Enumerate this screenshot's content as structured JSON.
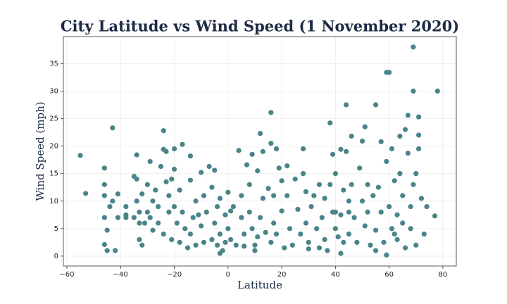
{
  "chart_data": {
    "type": "scatter",
    "title": "City Latitude vs Wind Speed (1 November 2020)",
    "x_label": "Latitude",
    "y_label": "Wind Speed (mph)",
    "color": "#4a8489",
    "grid": true,
    "xlim": [
      -61.3,
      85
    ],
    "ylim": [
      -1.8,
      39.9
    ],
    "xticks": [
      {
        "value": -60,
        "label": "−60"
      },
      {
        "value": -40,
        "label": "−40"
      },
      {
        "value": -20,
        "label": "−20"
      },
      0,
      20,
      40,
      60,
      80
    ],
    "yticks": [
      0,
      5,
      10,
      15,
      20,
      25,
      30,
      35
    ],
    "x": [
      -55,
      -53,
      -46,
      -46,
      -46,
      -46,
      -45,
      -46,
      -45,
      -43,
      -43,
      -42,
      -44,
      -41,
      -41,
      -38,
      -38,
      -38,
      -35,
      -34,
      -34,
      -34,
      -33,
      -33,
      -32,
      -32,
      -33,
      -31,
      -30,
      -29,
      -29,
      -28,
      -28,
      -27,
      -26,
      -26,
      -25,
      -24,
      -24,
      -23,
      -23,
      -24,
      -22,
      -22,
      -21,
      -21,
      -20,
      -20,
      -20,
      -19,
      -18,
      -18,
      -17,
      -17,
      -16,
      -15,
      -14,
      -14,
      -14,
      -13,
      -12,
      -12,
      -11,
      -10,
      -10,
      -9,
      -9,
      -8,
      -7,
      -6,
      -6,
      -5,
      -5,
      -4,
      -4,
      -3,
      -3,
      -2,
      -1,
      -1,
      0,
      0,
      1,
      1,
      2,
      3,
      4,
      5,
      5,
      6,
      6,
      7,
      8,
      8,
      9,
      9,
      10,
      11,
      11,
      12,
      12,
      13,
      13,
      14,
      15,
      16,
      16,
      16,
      17,
      17,
      18,
      18,
      19,
      20,
      20,
      21,
      22,
      22,
      23,
      24,
      25,
      26,
      27,
      28,
      28,
      29,
      29,
      30,
      31,
      32,
      33,
      34,
      34,
      35,
      36,
      36,
      37,
      38,
      38,
      39,
      39,
      40,
      40,
      41,
      42,
      42,
      43,
      43,
      44,
      44,
      45,
      45,
      46,
      46,
      47,
      48,
      49,
      50,
      50,
      51,
      51,
      52,
      52,
      53,
      54,
      55,
      55,
      56,
      57,
      57,
      58,
      59,
      60,
      59,
      60,
      61,
      61,
      62,
      63,
      63,
      64,
      64,
      65,
      66,
      66,
      67,
      67,
      68,
      68,
      69,
      69,
      69,
      70,
      70,
      71,
      71,
      71,
      72,
      73,
      74,
      77,
      78,
      65,
      62,
      55,
      59,
      42,
      30,
      10,
      -3,
      -35,
      -30,
      45,
      40
    ],
    "values": [
      18.3,
      11.4,
      16,
      13,
      11,
      7,
      4.7,
      2.1,
      1,
      23.3,
      10,
      1,
      9,
      11.3,
      7,
      7.5,
      9,
      7,
      14.5,
      14,
      18.4,
      10,
      8,
      6,
      11.3,
      2,
      3,
      6,
      13,
      17.2,
      7,
      4.7,
      10,
      12,
      9,
      6,
      16.3,
      19.4,
      22.8,
      19,
      13.5,
      4,
      11,
      8,
      14,
      3,
      19.5,
      15.8,
      9,
      6,
      2.5,
      12,
      20.3,
      8,
      5,
      1.5,
      18.2,
      13.8,
      4,
      7,
      10,
      2,
      7.5,
      15.2,
      5.5,
      2.5,
      11,
      8,
      16.3,
      12.5,
      3,
      15.6,
      6,
      2,
      9,
      10.5,
      4,
      1,
      2.5,
      7.5,
      11.6,
      5,
      3,
      8.2,
      9,
      2,
      19.2,
      11,
      7,
      4,
      1.8,
      16.6,
      13,
      8,
      5,
      18.5,
      2,
      15.5,
      3.5,
      22.3,
      7,
      19,
      10.5,
      4.3,
      12.3,
      26.1,
      20.5,
      2.5,
      11,
      6,
      19.5,
      4,
      16,
      8.2,
      13.7,
      1.5,
      11,
      16.4,
      5,
      2,
      14,
      8.5,
      4,
      19.5,
      15,
      11.7,
      6,
      2.5,
      9,
      11,
      5,
      13,
      1.5,
      7,
      10.5,
      3,
      1,
      24.2,
      13,
      18.5,
      8,
      15,
      5,
      3.5,
      19.4,
      7.5,
      12,
      2.5,
      27.5,
      19,
      10,
      4,
      21.8,
      13,
      7,
      2.5,
      16,
      10,
      20.9,
      23.5,
      5.5,
      13,
      8,
      2,
      11,
      27.5,
      4.7,
      12.5,
      8,
      20.8,
      2.5,
      33.4,
      33.4,
      17.2,
      9,
      19.5,
      5,
      13.7,
      3,
      7.5,
      21.8,
      15,
      11,
      1.5,
      23,
      25.6,
      18.7,
      9,
      5,
      38,
      30,
      13,
      2,
      15,
      25.3,
      22,
      19.5,
      10.5,
      4,
      9,
      7.3,
      30,
      6,
      4,
      1,
      0.2,
      0.5,
      1.3,
      1,
      0.5,
      7,
      8,
      8,
      8
    ]
  }
}
